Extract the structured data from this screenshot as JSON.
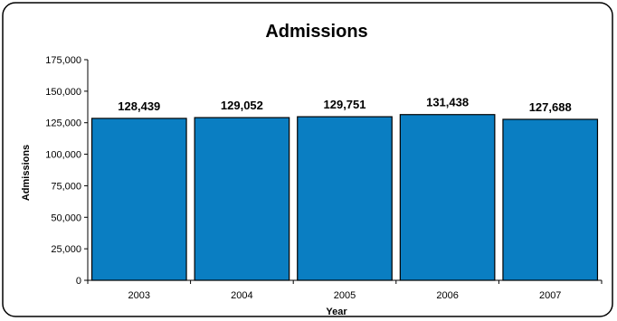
{
  "chart_data": {
    "type": "bar",
    "title": "Admissions",
    "xlabel": "Year",
    "ylabel": "Admissions",
    "categories": [
      "2003",
      "2004",
      "2005",
      "2006",
      "2007"
    ],
    "values": [
      128439,
      129052,
      129751,
      131438,
      127688
    ],
    "value_labels": [
      "128,439",
      "129,052",
      "129,751",
      "131,438",
      "127,688"
    ],
    "ylim": [
      0,
      175000
    ],
    "yticks": [
      0,
      25000,
      50000,
      75000,
      100000,
      125000,
      150000,
      175000
    ],
    "ytick_labels": [
      "0",
      "25,000",
      "50,000",
      "75,000",
      "100,000",
      "125,000",
      "150,000",
      "175,000"
    ],
    "grid": false,
    "legend": "none",
    "bar_color": "#0A7EC2",
    "bar_edge_color": "#000000"
  }
}
